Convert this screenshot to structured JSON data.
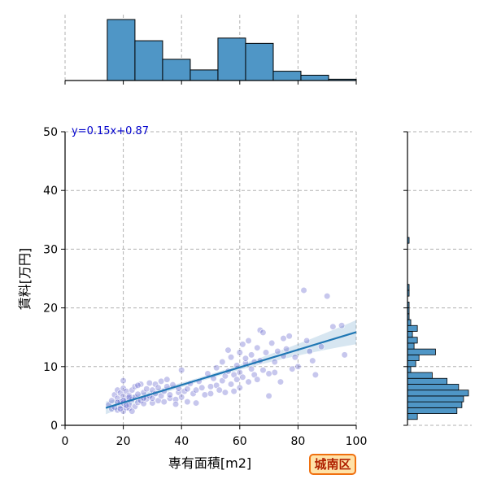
{
  "chart_data": {
    "type": "scatter",
    "xlabel": "専有面積[m2]",
    "ylabel": "賃料[万円]",
    "xlim": [
      0,
      100
    ],
    "ylim": [
      0,
      50
    ],
    "xticks": [
      0,
      20,
      40,
      60,
      80,
      100
    ],
    "yticks": [
      0,
      10,
      20,
      30,
      40,
      50
    ],
    "grid": true,
    "annotation": "y=0.15x+0.87",
    "regression": {
      "slope": 0.15,
      "intercept": 0.87,
      "x_range": [
        14,
        100
      ]
    },
    "point_color": "#5050c8",
    "line_color": "#1f77b4",
    "hist_color": "#4f96c6",
    "annotation_color": "#0000cc",
    "points": [
      [
        15,
        3.5
      ],
      [
        16,
        2.8
      ],
      [
        16,
        4.2
      ],
      [
        17,
        3.1
      ],
      [
        17,
        5.2
      ],
      [
        18,
        2.6
      ],
      [
        18,
        4.6
      ],
      [
        18,
        6.0
      ],
      [
        19,
        3.3
      ],
      [
        19,
        4.0
      ],
      [
        19,
        5.5
      ],
      [
        20,
        2.4
      ],
      [
        20,
        3.8
      ],
      [
        20,
        4.9
      ],
      [
        20,
        6.3
      ],
      [
        20,
        7.6
      ],
      [
        21,
        3.0
      ],
      [
        21,
        4.3
      ],
      [
        21,
        5.8
      ],
      [
        22,
        2.9
      ],
      [
        22,
        3.6
      ],
      [
        22,
        5.1
      ],
      [
        23,
        4.4
      ],
      [
        23,
        6.0
      ],
      [
        24,
        3.2
      ],
      [
        24,
        4.8
      ],
      [
        24,
        6.6
      ],
      [
        25,
        3.9
      ],
      [
        25,
        5.3
      ],
      [
        26,
        4.2
      ],
      [
        26,
        7.0
      ],
      [
        27,
        3.7
      ],
      [
        27,
        5.6
      ],
      [
        28,
        4.5
      ],
      [
        28,
        6.2
      ],
      [
        29,
        5.0
      ],
      [
        29,
        7.2
      ],
      [
        30,
        3.8
      ],
      [
        30,
        4.6
      ],
      [
        30,
        6.0
      ],
      [
        31,
        5.4
      ],
      [
        31,
        7.0
      ],
      [
        32,
        4.2
      ],
      [
        32,
        6.4
      ],
      [
        33,
        5.0
      ],
      [
        33,
        7.5
      ],
      [
        34,
        4.0
      ],
      [
        34,
        5.8
      ],
      [
        35,
        6.6
      ],
      [
        35,
        7.8
      ],
      [
        36,
        4.6
      ],
      [
        36,
        5.2
      ],
      [
        37,
        6.9
      ],
      [
        38,
        4.4
      ],
      [
        38,
        3.6
      ],
      [
        39,
        5.6
      ],
      [
        39,
        6.3
      ],
      [
        40,
        4.8
      ],
      [
        40,
        9.4
      ],
      [
        41,
        5.8
      ],
      [
        42,
        6.2
      ],
      [
        42,
        4.0
      ],
      [
        43,
        7.1
      ],
      [
        44,
        5.4
      ],
      [
        45,
        6.0
      ],
      [
        45,
        3.8
      ],
      [
        46,
        7.5
      ],
      [
        47,
        6.4
      ],
      [
        48,
        5.2
      ],
      [
        49,
        8.8
      ],
      [
        50,
        6.6
      ],
      [
        50,
        5.4
      ],
      [
        51,
        8.0
      ],
      [
        52,
        6.8
      ],
      [
        52,
        9.8
      ],
      [
        53,
        6.0
      ],
      [
        54,
        7.6
      ],
      [
        54,
        10.8
      ],
      [
        55,
        8.4
      ],
      [
        55,
        5.6
      ],
      [
        56,
        9.2
      ],
      [
        56,
        12.8
      ],
      [
        57,
        7.0
      ],
      [
        57,
        11.6
      ],
      [
        58,
        8.6
      ],
      [
        58,
        5.8
      ],
      [
        59,
        10.2
      ],
      [
        59,
        7.8
      ],
      [
        60,
        12.4
      ],
      [
        60,
        9.0
      ],
      [
        60,
        6.4
      ],
      [
        61,
        13.8
      ],
      [
        61,
        8.2
      ],
      [
        62,
        10.6
      ],
      [
        62,
        11.4
      ],
      [
        63,
        7.4
      ],
      [
        63,
        14.4
      ],
      [
        64,
        9.6
      ],
      [
        64,
        12.0
      ],
      [
        65,
        8.6
      ],
      [
        65,
        10.8
      ],
      [
        66,
        7.8
      ],
      [
        66,
        13.2
      ],
      [
        67,
        16.2
      ],
      [
        67,
        11.0
      ],
      [
        68,
        9.4
      ],
      [
        68,
        15.8
      ],
      [
        69,
        12.4
      ],
      [
        70,
        8.8
      ],
      [
        70,
        5.0
      ],
      [
        71,
        14.0
      ],
      [
        72,
        10.8
      ],
      [
        72,
        9.0
      ],
      [
        73,
        12.6
      ],
      [
        74,
        7.4
      ],
      [
        75,
        11.8
      ],
      [
        75,
        14.8
      ],
      [
        76,
        13.0
      ],
      [
        77,
        15.2
      ],
      [
        78,
        9.6
      ],
      [
        79,
        11.6
      ],
      [
        80,
        10.0
      ],
      [
        82,
        23.0
      ],
      [
        83,
        14.4
      ],
      [
        84,
        12.6
      ],
      [
        85,
        11.0
      ],
      [
        86,
        8.6
      ],
      [
        88,
        13.4
      ],
      [
        90,
        22.0
      ],
      [
        92,
        16.8
      ],
      [
        95,
        17.0
      ],
      [
        96,
        12.0
      ],
      [
        20,
        4.2
      ],
      [
        21,
        3.4
      ],
      [
        23,
        2.4
      ],
      [
        25,
        6.8
      ],
      [
        27,
        4.6
      ],
      [
        18,
        3.9
      ],
      [
        19,
        2.8
      ],
      [
        22,
        4.8
      ]
    ],
    "x_histogram": {
      "bin_edges": [
        5,
        14.5,
        24,
        33.5,
        43,
        52.5,
        62,
        71.5,
        81,
        90.5,
        100
      ],
      "counts": [
        0,
        46,
        30,
        16,
        8,
        32,
        28,
        7,
        4,
        1
      ]
    },
    "y_histogram": {
      "bin_edges": [
        0,
        1,
        2,
        3,
        4,
        5,
        6,
        7,
        8,
        9,
        10,
        11,
        12,
        13,
        14,
        15,
        16,
        17,
        18,
        19,
        20,
        21,
        22,
        23,
        24,
        25,
        26,
        27,
        28,
        29,
        30,
        31,
        32,
        33,
        34,
        35,
        36,
        37,
        38,
        39,
        40,
        41,
        42,
        43,
        44,
        45,
        46,
        47,
        48,
        49,
        50
      ],
      "counts": [
        0,
        6,
        30,
        33,
        34,
        37,
        31,
        24,
        15,
        2,
        5,
        7,
        17,
        4,
        6,
        3,
        6,
        2,
        1,
        1,
        1,
        0,
        1,
        1,
        0,
        0,
        0,
        0,
        0,
        0,
        0,
        1,
        0,
        0,
        0,
        0,
        0,
        0,
        0,
        0,
        0,
        0,
        0,
        0,
        0,
        0,
        0,
        0,
        0,
        0
      ]
    }
  },
  "badge": {
    "label": "城南区"
  }
}
